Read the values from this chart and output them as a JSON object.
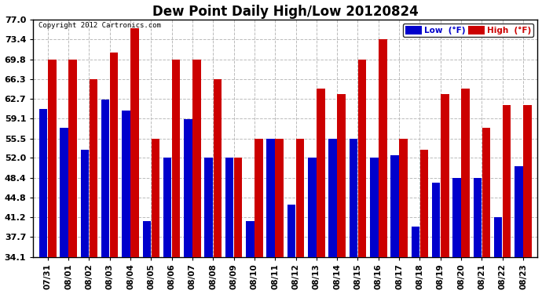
{
  "title": "Dew Point Daily High/Low 20120824",
  "copyright": "Copyright 2012 Cartronics.com",
  "dates": [
    "07/31",
    "08/01",
    "08/02",
    "08/03",
    "08/04",
    "08/05",
    "08/06",
    "08/07",
    "08/08",
    "08/09",
    "08/10",
    "08/11",
    "08/12",
    "08/13",
    "08/14",
    "08/15",
    "08/16",
    "08/17",
    "08/18",
    "08/19",
    "08/20",
    "08/21",
    "08/22",
    "08/23"
  ],
  "low_values": [
    60.8,
    57.5,
    53.5,
    62.5,
    60.5,
    40.5,
    52.0,
    59.0,
    52.0,
    52.0,
    40.5,
    55.5,
    43.5,
    52.0,
    55.5,
    55.5,
    52.0,
    52.5,
    39.5,
    47.5,
    48.4,
    48.4,
    41.2,
    50.5
  ],
  "high_values": [
    69.8,
    69.8,
    66.3,
    71.0,
    75.5,
    55.5,
    69.8,
    69.8,
    66.3,
    52.0,
    55.5,
    55.5,
    55.5,
    64.5,
    63.5,
    69.8,
    73.4,
    55.5,
    53.5,
    63.5,
    64.5,
    57.5,
    61.5,
    61.5
  ],
  "ylim_min": 34.1,
  "ylim_max": 77.0,
  "yticks": [
    34.1,
    37.7,
    41.2,
    44.8,
    48.4,
    52.0,
    55.5,
    59.1,
    62.7,
    66.3,
    69.8,
    73.4,
    77.0
  ],
  "low_color": "#0000cc",
  "high_color": "#cc0000",
  "bg_color": "#ffffff",
  "plot_bg_color": "#ffffff",
  "grid_color": "#bbbbbb",
  "title_fontsize": 12,
  "legend_low_label": "Low  (°F)",
  "legend_high_label": "High  (°F)"
}
